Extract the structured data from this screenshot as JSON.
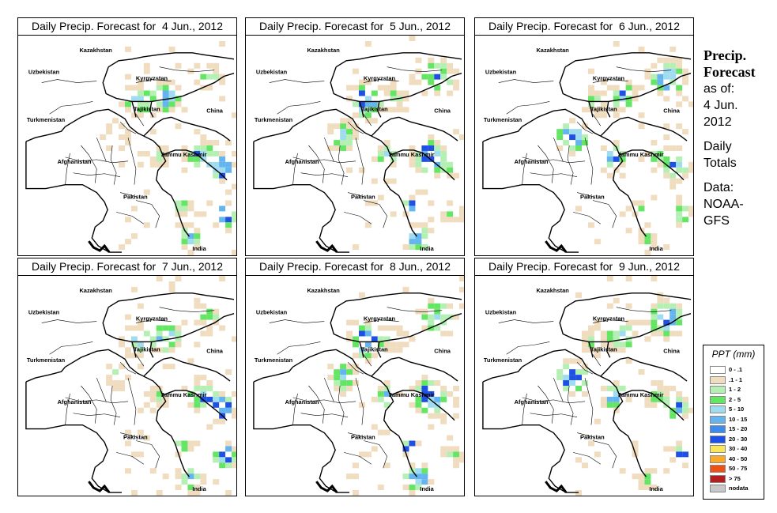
{
  "panels": [
    {
      "title": "Daily Precip. Forecast for  4 Jun., 2012",
      "seed": 4
    },
    {
      "title": "Daily Precip. Forecast for  5 Jun., 2012",
      "seed": 5
    },
    {
      "title": "Daily Precip. Forecast for  6 Jun., 2012",
      "seed": 6
    },
    {
      "title": "Daily Precip. Forecast for  7 Jun., 2012",
      "seed": 7
    },
    {
      "title": "Daily Precip. Forecast for  8 Jun., 2012",
      "seed": 8
    },
    {
      "title": "Daily Precip. Forecast for  9 Jun., 2012",
      "seed": 9
    }
  ],
  "map_labels": [
    "Kazakhstan",
    "Uzbekistan",
    "Kyrgyzstan",
    "Tajikistan",
    "Turkmenistan",
    "China",
    "Afghanistan",
    "Jammu Kashmir",
    "Pakistan",
    "India"
  ],
  "side": {
    "line1": "Precip.",
    "line2": "Forecast",
    "line3": "as of:",
    "line4": "4 Jun.",
    "line5": "2012",
    "line6": "Daily",
    "line7": "Totals",
    "line8": "Data:",
    "line9": "NOAA-",
    "line10": "GFS"
  },
  "legend": {
    "title": "PPT (mm)",
    "items": [
      {
        "label": "0 - .1",
        "color": "#ffffff"
      },
      {
        "label": ".1 - 1",
        "color": "#f0dcbe"
      },
      {
        "label": "1 - 2",
        "color": "#b4f0b4"
      },
      {
        "label": "2 - 5",
        "color": "#64e664"
      },
      {
        "label": "5 - 10",
        "color": "#a0dcf0"
      },
      {
        "label": "10 - 15",
        "color": "#64b4f0"
      },
      {
        "label": "15 - 20",
        "color": "#3c8cf0"
      },
      {
        "label": "20 - 30",
        "color": "#1e50e6"
      },
      {
        "label": "30 - 40",
        "color": "#fae65a"
      },
      {
        "label": "40 - 50",
        "color": "#faaa28"
      },
      {
        "label": "50 - 75",
        "color": "#f05014"
      },
      {
        "label": "> 75",
        "color": "#b41e1e"
      },
      {
        "label": "nodata",
        "color": "#c8c8c8"
      }
    ]
  }
}
